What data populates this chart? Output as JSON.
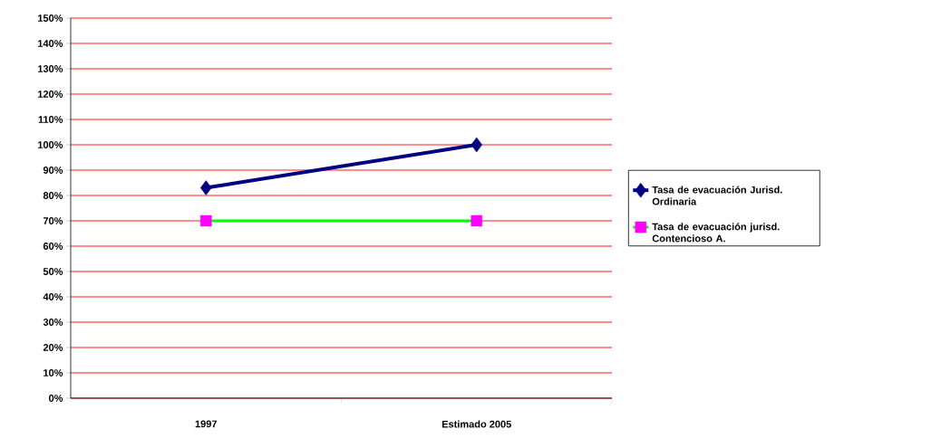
{
  "chart_data": {
    "type": "line",
    "categories": [
      "1997",
      "Estimado  2005"
    ],
    "series": [
      {
        "name": "Tasa de evacuación Jurisd. Ordinaria",
        "color": "#000080",
        "colors": [
          "#000080",
          "#000080"
        ],
        "marker": "diamond",
        "values": [
          83,
          100
        ]
      },
      {
        "name": "Tasa de evacuación jurisd. Contencioso A.",
        "color": "#00ff00",
        "colors": [
          "#ff00ff",
          "#ff00ff"
        ],
        "marker": "square",
        "values": [
          70,
          70
        ]
      }
    ],
    "ylim": [
      0,
      150
    ],
    "yticks": [
      {
        "value": 0,
        "label": "0%"
      },
      {
        "value": 10,
        "label": "10%"
      },
      {
        "value": 20,
        "label": "20%"
      },
      {
        "value": 30,
        "label": "30%"
      },
      {
        "value": 40,
        "label": "40%"
      },
      {
        "value": 50,
        "label": "50%"
      },
      {
        "value": 60,
        "label": "60%"
      },
      {
        "value": 70,
        "label": "70%"
      },
      {
        "value": 80,
        "label": "80%"
      },
      {
        "value": 90,
        "label": "90%"
      },
      {
        "value": 100,
        "label": "100%"
      },
      {
        "value": 110,
        "label": "110%"
      },
      {
        "value": 120,
        "label": "120%"
      },
      {
        "value": 130,
        "label": "130%"
      },
      {
        "value": 140,
        "label": "140%"
      },
      {
        "value": 150,
        "label": "150%"
      }
    ],
    "grid": "y",
    "legend": "right",
    "line_style": "solid"
  }
}
